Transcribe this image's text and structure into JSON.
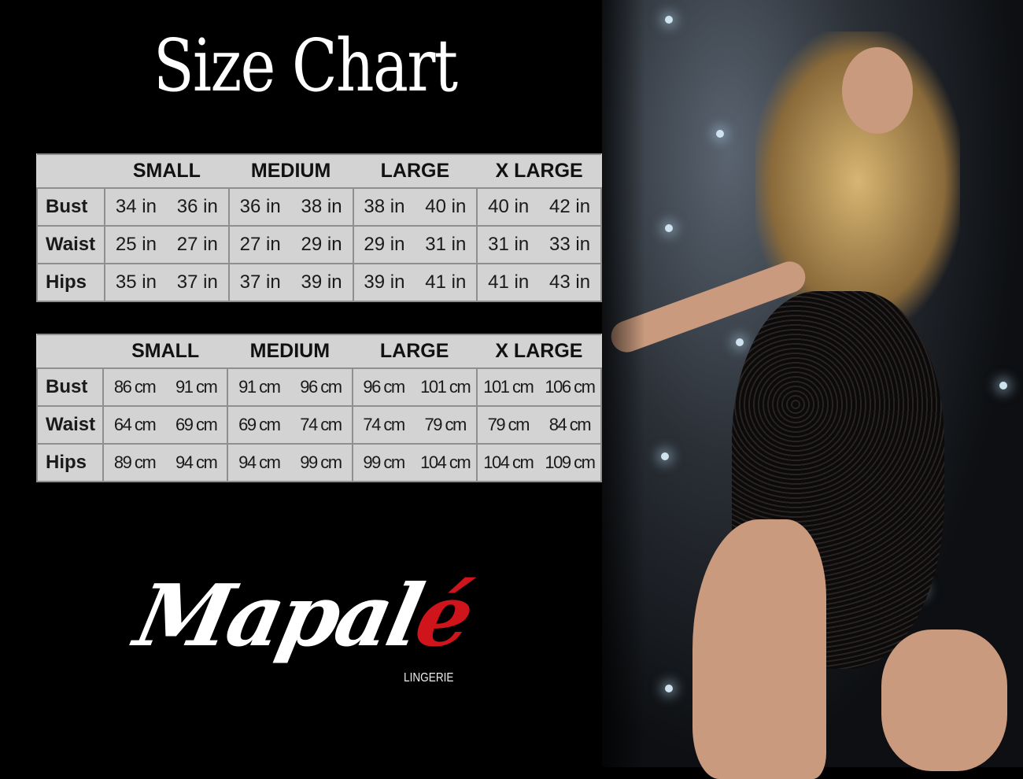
{
  "title": "Size Chart",
  "sizes": [
    "SMALL",
    "MEDIUM",
    "LARGE",
    "X LARGE"
  ],
  "inches_table": {
    "rows": [
      {
        "label": "Bust",
        "values": [
          "34 in",
          "36 in",
          "36 in",
          "38 in",
          "38 in",
          "40 in",
          "40 in",
          "42 in"
        ]
      },
      {
        "label": "Waist",
        "values": [
          "25 in",
          "27 in",
          "27 in",
          "29 in",
          "29 in",
          "31 in",
          "31 in",
          "33 in"
        ]
      },
      {
        "label": "Hips",
        "values": [
          "35 in",
          "37 in",
          "37 in",
          "39 in",
          "39 in",
          "41 in",
          "41 in",
          "43 in"
        ]
      }
    ]
  },
  "cm_table": {
    "rows": [
      {
        "label": "Bust",
        "values": [
          "86 cm",
          "91 cm",
          "91 cm",
          "96 cm",
          "96 cm",
          "101 cm",
          "101 cm",
          "106 cm"
        ]
      },
      {
        "label": "Waist",
        "values": [
          "64 cm",
          "69 cm",
          "69 cm",
          "74 cm",
          "74 cm",
          "79  cm",
          "79 cm",
          "84 cm"
        ]
      },
      {
        "label": "Hips",
        "values": [
          "89 cm",
          "94 cm",
          "94 cm",
          "99 cm",
          "99 cm",
          "104 cm",
          "104 cm",
          "109 cm"
        ]
      }
    ]
  },
  "logo": {
    "name_main": "Mapal",
    "name_accent": "é",
    "subtitle": "LINGERIE",
    "accent_color": "#d0141b"
  }
}
